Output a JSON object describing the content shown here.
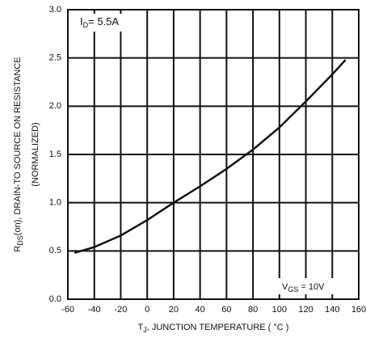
{
  "chart_data": {
    "type": "line",
    "y_label": {
      "main": "R",
      "sub": "DS",
      "rest": "(on), DRAIN-TO SOURCE ON RESISTANCE"
    },
    "y_label_2": "(NORMALIZED)",
    "x_label": {
      "main": "T",
      "sub": "J",
      "rest": ", JUNCTION TEMPERATURE ( °C )"
    },
    "annotations": [
      {
        "main": "I",
        "sub": "D",
        "rest": "= 5.5A"
      },
      {
        "main": "V",
        "sub": "GS",
        "rest": " = 10V"
      }
    ],
    "x": [
      -55,
      -40,
      -20,
      0,
      20,
      40,
      60,
      80,
      100,
      120,
      140,
      150
    ],
    "series": [
      {
        "color": "#111111",
        "values": [
          0.48,
          0.54,
          0.66,
          0.82,
          1.0,
          1.17,
          1.35,
          1.55,
          1.78,
          2.05,
          2.33,
          2.48
        ]
      }
    ],
    "xlim": [
      -60,
      160
    ],
    "xticks": [
      -60,
      -40,
      -20,
      0,
      20,
      40,
      60,
      80,
      100,
      120,
      140,
      160
    ],
    "ylim": [
      0,
      3
    ],
    "yticks": [
      {
        "value": 0,
        "label": "0.0"
      },
      0.5,
      {
        "value": 1,
        "label": "1.0"
      },
      1.5,
      {
        "value": 2,
        "label": "2.0"
      },
      2.5,
      {
        "value": 3,
        "label": "3.0"
      }
    ],
    "grid": true
  }
}
